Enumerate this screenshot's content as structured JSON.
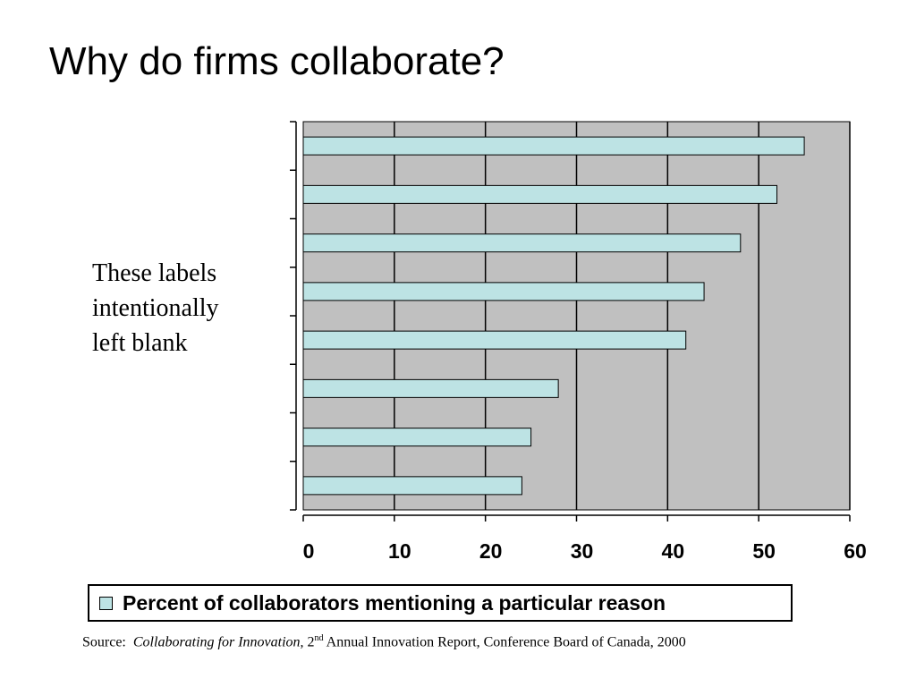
{
  "slide": {
    "title": "Why do firms collaborate?",
    "note_lines": [
      "These labels",
      "intentionally",
      "left blank"
    ]
  },
  "chart_data": {
    "type": "bar",
    "orientation": "horizontal",
    "categories": [
      "",
      "",
      "",
      "",
      "",
      "",
      "",
      ""
    ],
    "series": [
      {
        "name": "Percent of collaborators mentioning a particular reason",
        "values": [
          55,
          52,
          48,
          44,
          42,
          28,
          25,
          24
        ]
      }
    ],
    "xlim": [
      0,
      60
    ],
    "xticks": [
      0,
      10,
      20,
      30,
      40,
      50,
      60
    ],
    "grid": true,
    "legend": "bottom",
    "colors": {
      "bar_fill": "#bde3e4",
      "plot_bg": "#c0c0c0",
      "grid": "#000000"
    }
  },
  "source": {
    "prefix": "Source:",
    "title": "Collaborating for Innovation",
    "after_title": ", 2",
    "ordinal_suffix": "nd",
    "rest": " Annual Innovation Report, Conference Board of Canada, 2000"
  }
}
